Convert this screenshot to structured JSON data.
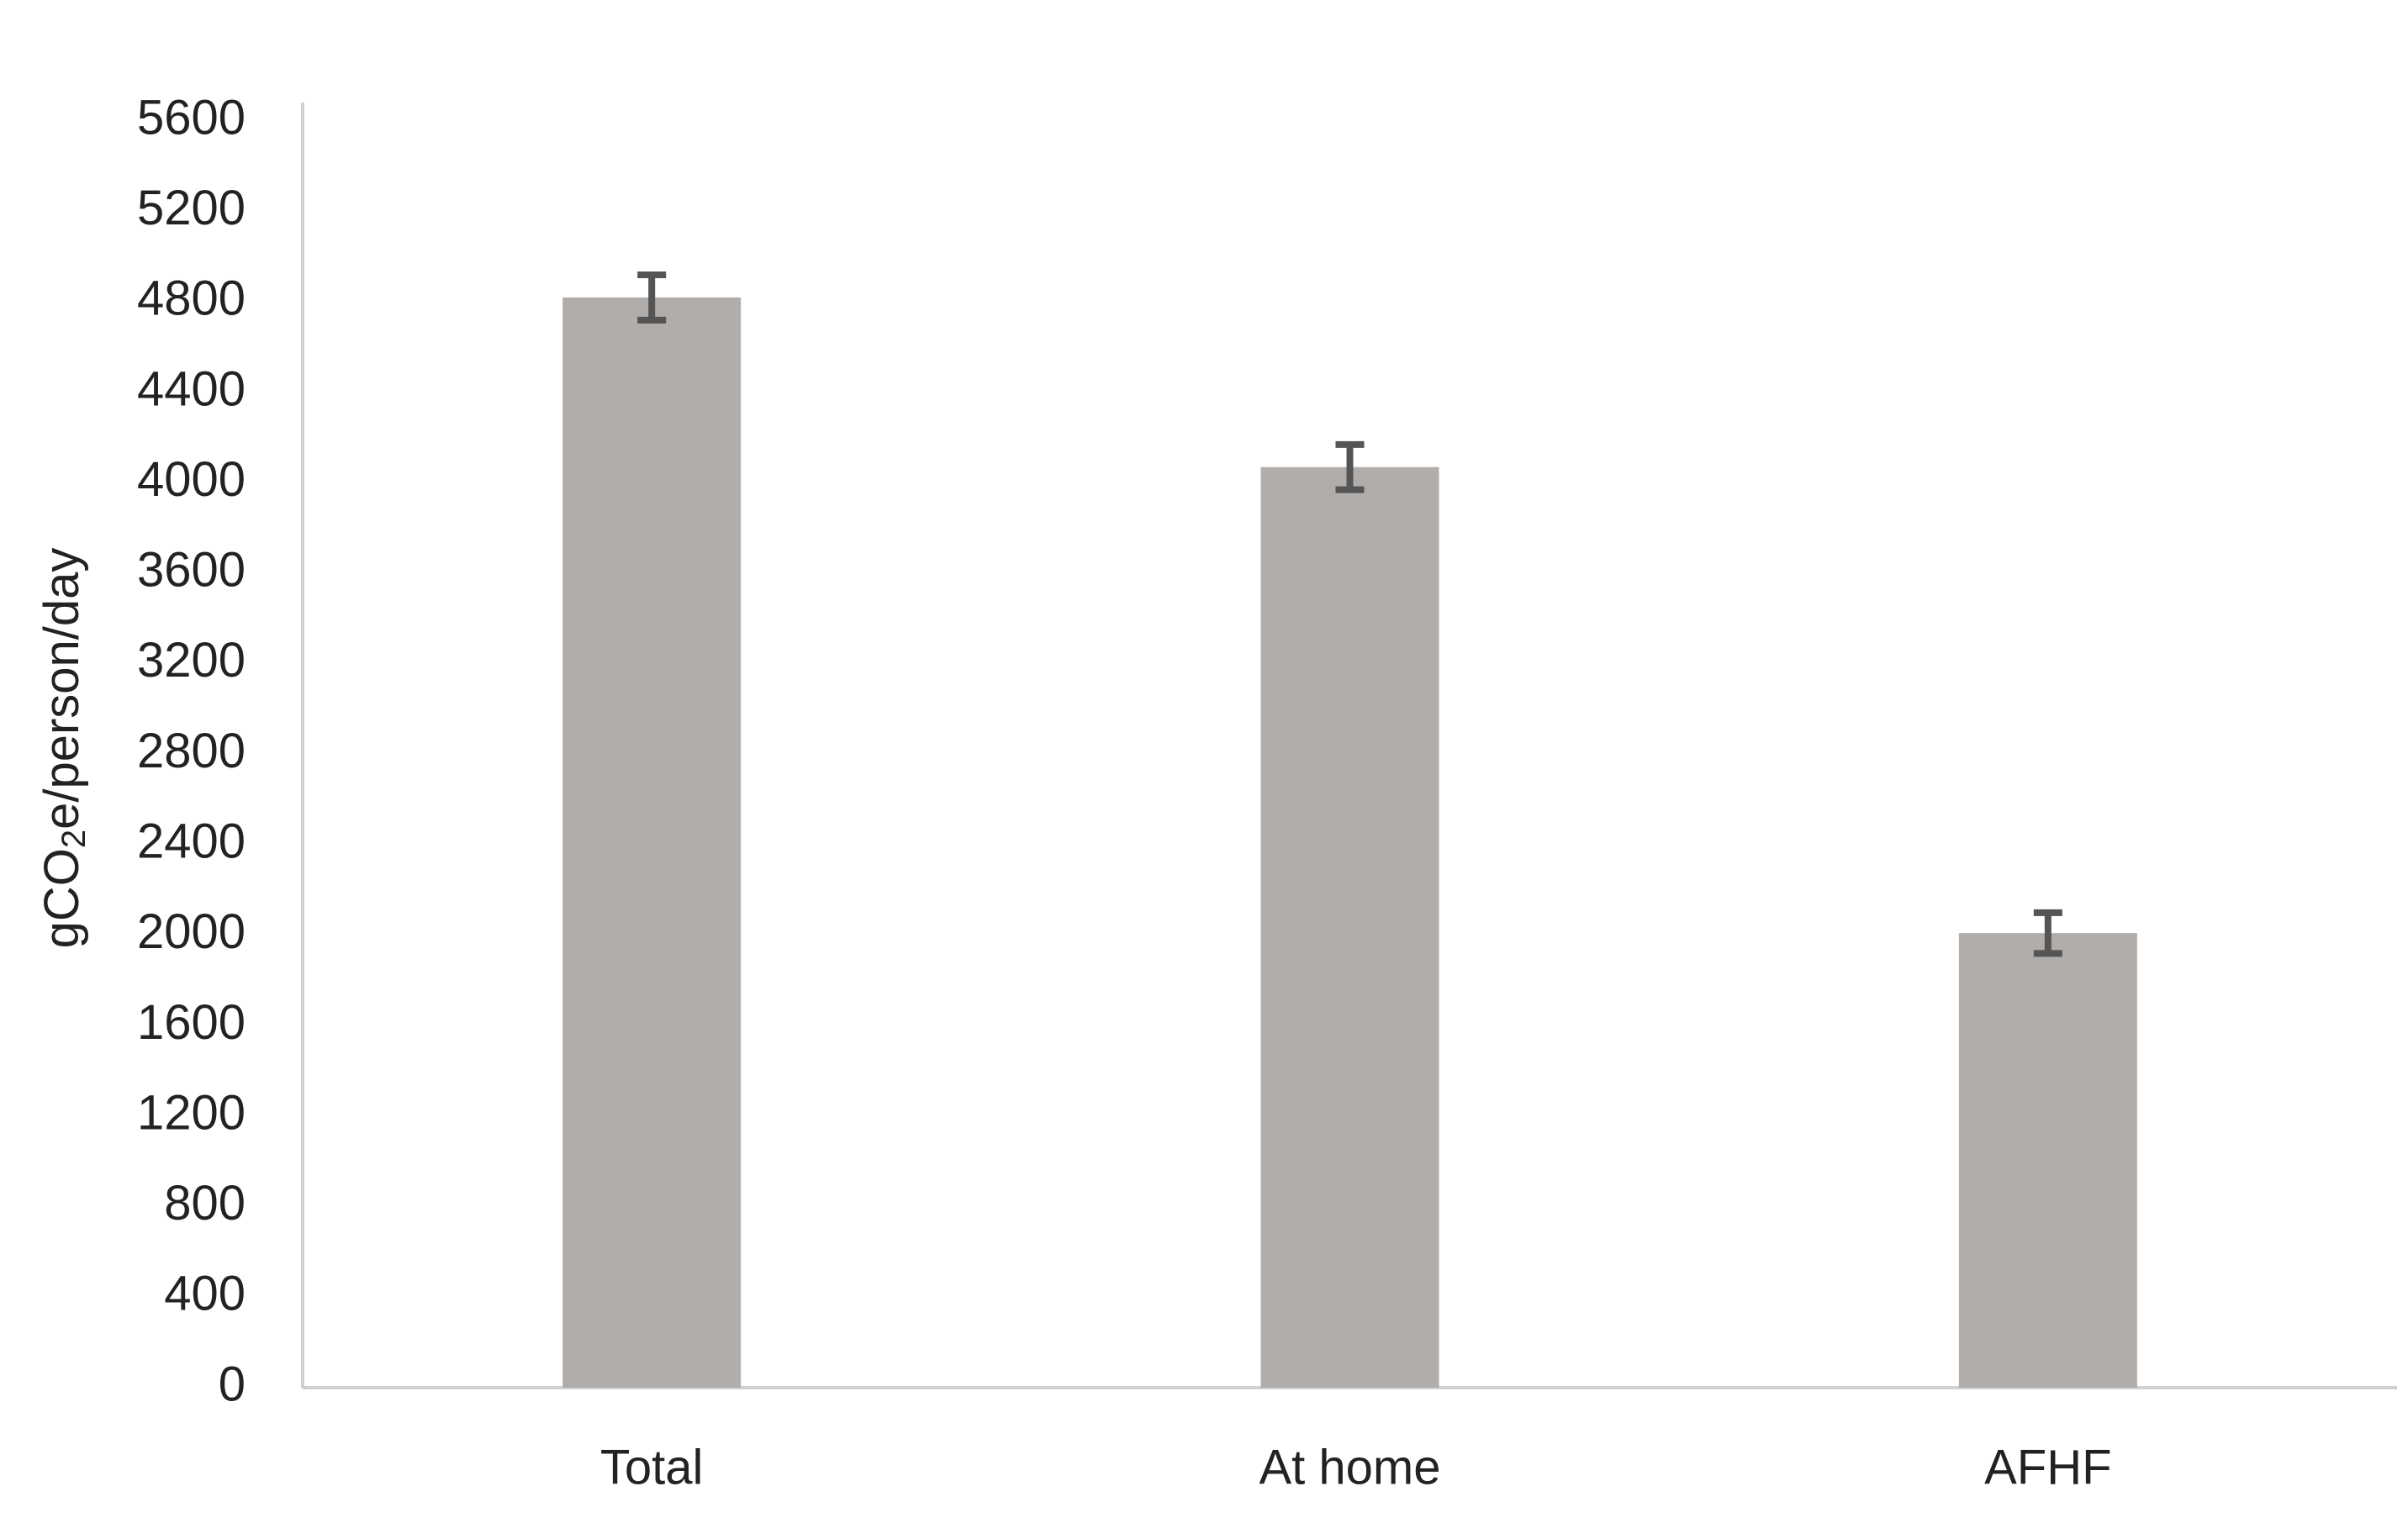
{
  "chart_data": {
    "type": "bar",
    "y_label": [
      "gCO",
      "2",
      "e/person/day"
    ],
    "categories": [
      "Total",
      "At home",
      "AFHF"
    ],
    "values": [
      4820,
      4070,
      2010
    ],
    "errors": [
      100,
      100,
      90
    ],
    "color": "#b1adab",
    "error_color": "#555555",
    "ylim": [
      0,
      5600
    ],
    "yticks": [
      0,
      400,
      800,
      1200,
      1600,
      2000,
      2400,
      2800,
      3200,
      3600,
      4000,
      4400,
      4800,
      5200,
      5600
    ],
    "grid": false
  }
}
